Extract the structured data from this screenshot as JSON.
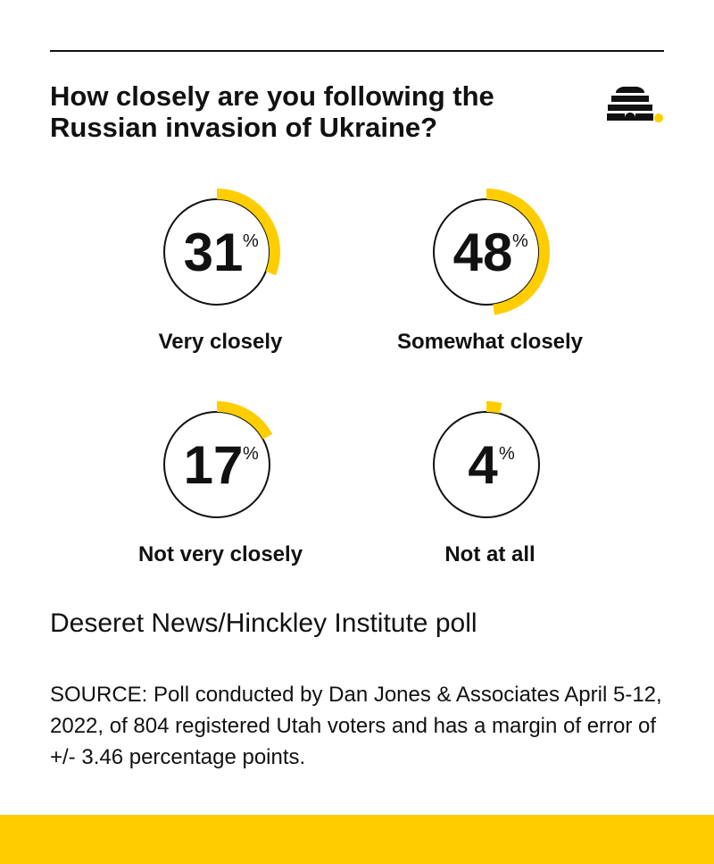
{
  "title": "How closely are you following the Russian invasion of Ukraine?",
  "logo_icon": "beehive-icon",
  "subtitle": "Deseret News/Hinckley Institute poll",
  "source": "SOURCE: Poll conducted by Dan Jones & Associates April 5-12, 2022, of 804 registered Utah voters and has a margin of error of +/- 3.46 percentage points.",
  "colors": {
    "accent": "#FFCD00",
    "ink": "#111111",
    "background": "#FFFFFF"
  },
  "chart_data": {
    "type": "pie",
    "unit": "%",
    "categories": [
      "Very closely",
      "Somewhat closely",
      "Not very closely",
      "Not at all"
    ],
    "values": [
      31,
      48,
      17,
      4
    ]
  }
}
